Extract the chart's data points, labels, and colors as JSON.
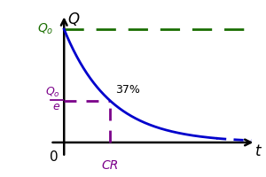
{
  "Q0": 1.0,
  "tau": 1.0,
  "x_max": 4.2,
  "y_max": 1.18,
  "y_min": -0.18,
  "x_min": -0.35,
  "curve_color": "#0000cc",
  "dashed_Q0_color": "#1a6e00",
  "dashed_tau_color": "#7b008a",
  "label_37": "37%",
  "label_CR": "CR",
  "label_t": "t",
  "label_Q": "Q",
  "label_zero": "0",
  "fig_width": 3.0,
  "fig_height": 2.0,
  "dpi": 100,
  "background_color": "#ffffff",
  "curve_solid_end": 3.3,
  "curve_dash_end": 4.05
}
